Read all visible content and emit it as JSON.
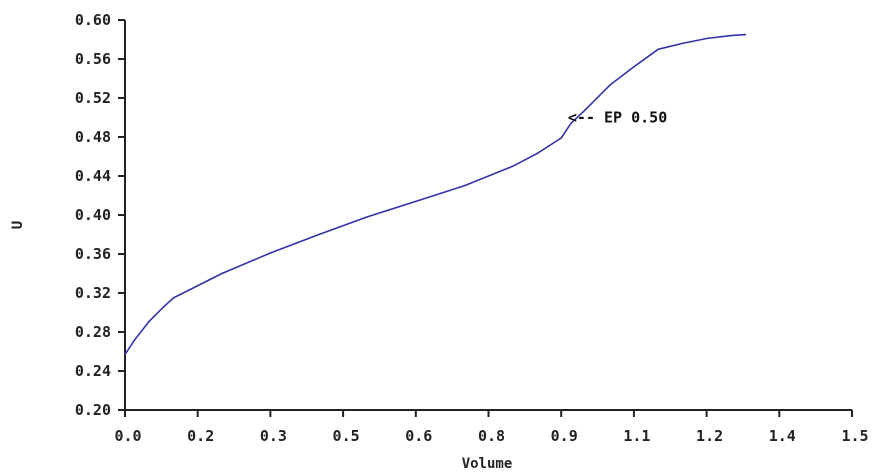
{
  "chart_data": {
    "type": "line",
    "xlabel": "Volume",
    "ylabel": "U",
    "xlim": [
      0.0,
      1.5
    ],
    "ylim": [
      0.2,
      0.6
    ],
    "x_tick_labels": [
      "0.0",
      "0.2",
      "0.3",
      "0.5",
      "0.6",
      "0.8",
      "0.9",
      "1.1",
      "1.2",
      "1.4",
      "1.5"
    ],
    "y_ticks": [
      0.2,
      0.24,
      0.28,
      0.32,
      0.36,
      0.4,
      0.44,
      0.48,
      0.52,
      0.56,
      0.6
    ],
    "y_tick_labels": [
      "0.20",
      "0.24",
      "0.28",
      "0.32",
      "0.36",
      "0.40",
      "0.44",
      "0.48",
      "0.52",
      "0.56",
      "0.60"
    ],
    "grid": false,
    "line_color": "#3333aa",
    "series": [
      {
        "x": [
          0.0,
          0.02,
          0.05,
          0.08,
          0.1,
          0.2,
          0.3,
          0.4,
          0.5,
          0.6,
          0.7,
          0.8,
          0.85,
          0.9,
          0.92,
          0.95,
          1.0,
          1.05,
          1.1,
          1.15,
          1.2,
          1.25,
          1.28
        ],
        "y": [
          0.257,
          0.272,
          0.291,
          0.306,
          0.315,
          0.34,
          0.361,
          0.38,
          0.398,
          0.414,
          0.43,
          0.45,
          0.463,
          0.479,
          0.494,
          0.508,
          0.533,
          0.552,
          0.57,
          0.576,
          0.581,
          0.584,
          0.585
        ]
      }
    ],
    "annotations": [
      {
        "text": "<-- EP 0.50",
        "x": 0.92,
        "y": 0.5
      }
    ]
  }
}
